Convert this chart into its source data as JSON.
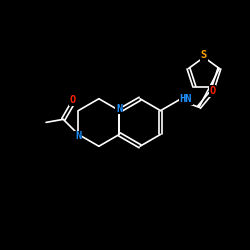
{
  "background_color": "#000000",
  "atom_colors": {
    "C": "#ffffff",
    "N": "#1e90ff",
    "O": "#ff2200",
    "S": "#ffa500",
    "H": "#ffffff"
  },
  "bond_color": "#ffffff",
  "fig_size": [
    2.5,
    2.5
  ],
  "dpi": 100
}
